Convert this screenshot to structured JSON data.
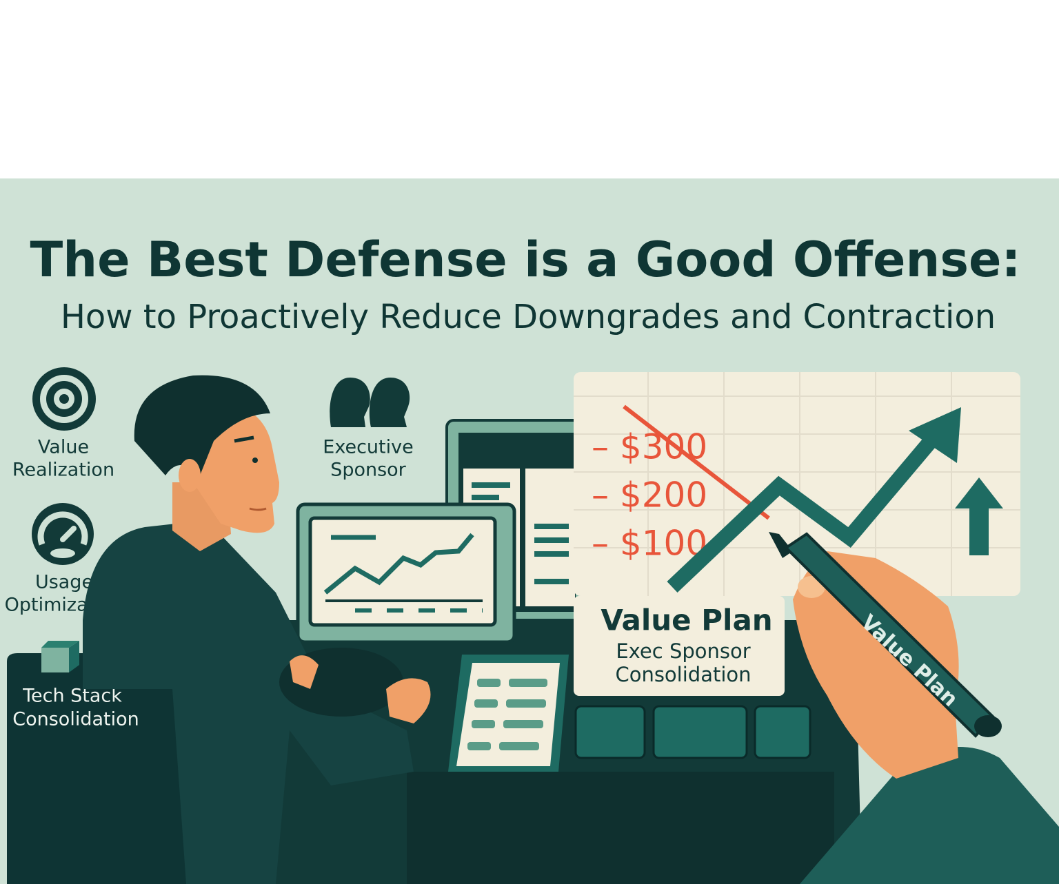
{
  "title": "The Best Defense is a Good Offense:",
  "subtitle": "How to Proactively Reduce Downgrades and Contraction",
  "icons": [
    {
      "lines": [
        "Value",
        "Realization"
      ]
    },
    {
      "lines": [
        "Usage",
        "Optimization"
      ]
    },
    {
      "lines": [
        "Tech Stack",
        "Consolidation"
      ]
    },
    {
      "lines": [
        "Executive",
        "Sponsor"
      ]
    }
  ],
  "prices": [
    "– $300",
    "– $200",
    "– $100"
  ],
  "value_plan_card": {
    "title": "Value Plan",
    "lines": [
      "Exec Sponsor",
      "Consolidation"
    ]
  },
  "pen_label": "Value Plan"
}
